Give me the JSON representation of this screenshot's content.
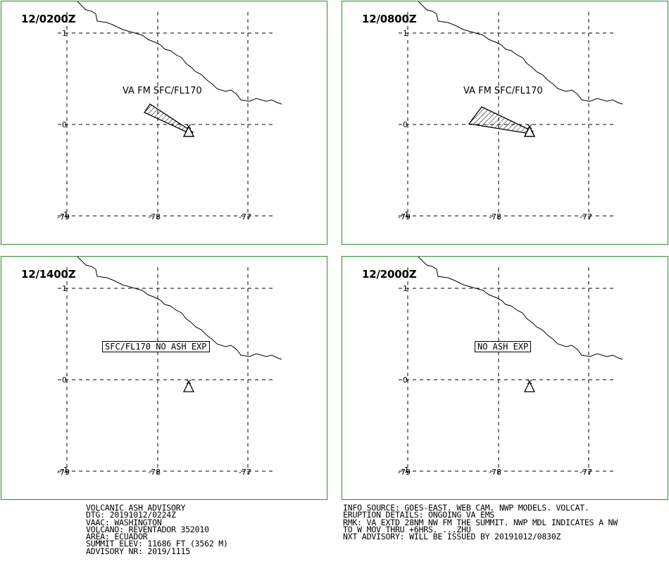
{
  "panels": [
    {
      "time": "12/0200Z",
      "label": "VA FM SFC/FL170",
      "label_style": "plain",
      "has_ash": true,
      "ash_intensity": "small"
    },
    {
      "time": "12/0800Z",
      "label": "VA FM SFC/FL170",
      "label_style": "plain",
      "has_ash": true,
      "ash_intensity": "larger"
    },
    {
      "time": "12/1400Z",
      "label": "SFC/FL170 NO ASH EXP",
      "label_style": "boxed",
      "has_ash": false
    },
    {
      "time": "12/2000Z",
      "label": "NO ASH EXP",
      "label_style": "boxed",
      "has_ash": false
    }
  ],
  "axes": {
    "lon_ticks": [
      "-79",
      "-78",
      "-77"
    ],
    "lat_ticks": [
      "1",
      "0",
      "-1"
    ]
  },
  "advisory_left": [
    "VOLCANIC ASH ADVISORY",
    "DTG: 20191012/0224Z",
    "VAAC: WASHINGTON",
    "VOLCANO: REVENTADOR 352010",
    "AREA: ECUADOR",
    "SUMMIT ELEV: 11686 FT (3562 M)",
    "ADVISORY NR: 2019/1115"
  ],
  "advisory_right": [
    "INFO SOURCE: GOES-EAST. WEB CAM. NWP MODELS. VOLCAT.",
    "ERUPTION DETAILS: ONGOING VA EMS",
    "RMK: VA EXTD 28NM NW FM THE SUMMIT. NWP MDL INDICATES A NW",
    "TO W MOV THRU +6HRS. ...ZHU",
    "NXT ADVISORY: WILL BE ISSUED BY 20191012/0830Z"
  ],
  "colors": {
    "panel_border": "#2e8b2e",
    "lines": "#000000",
    "background": "#ffffff"
  }
}
